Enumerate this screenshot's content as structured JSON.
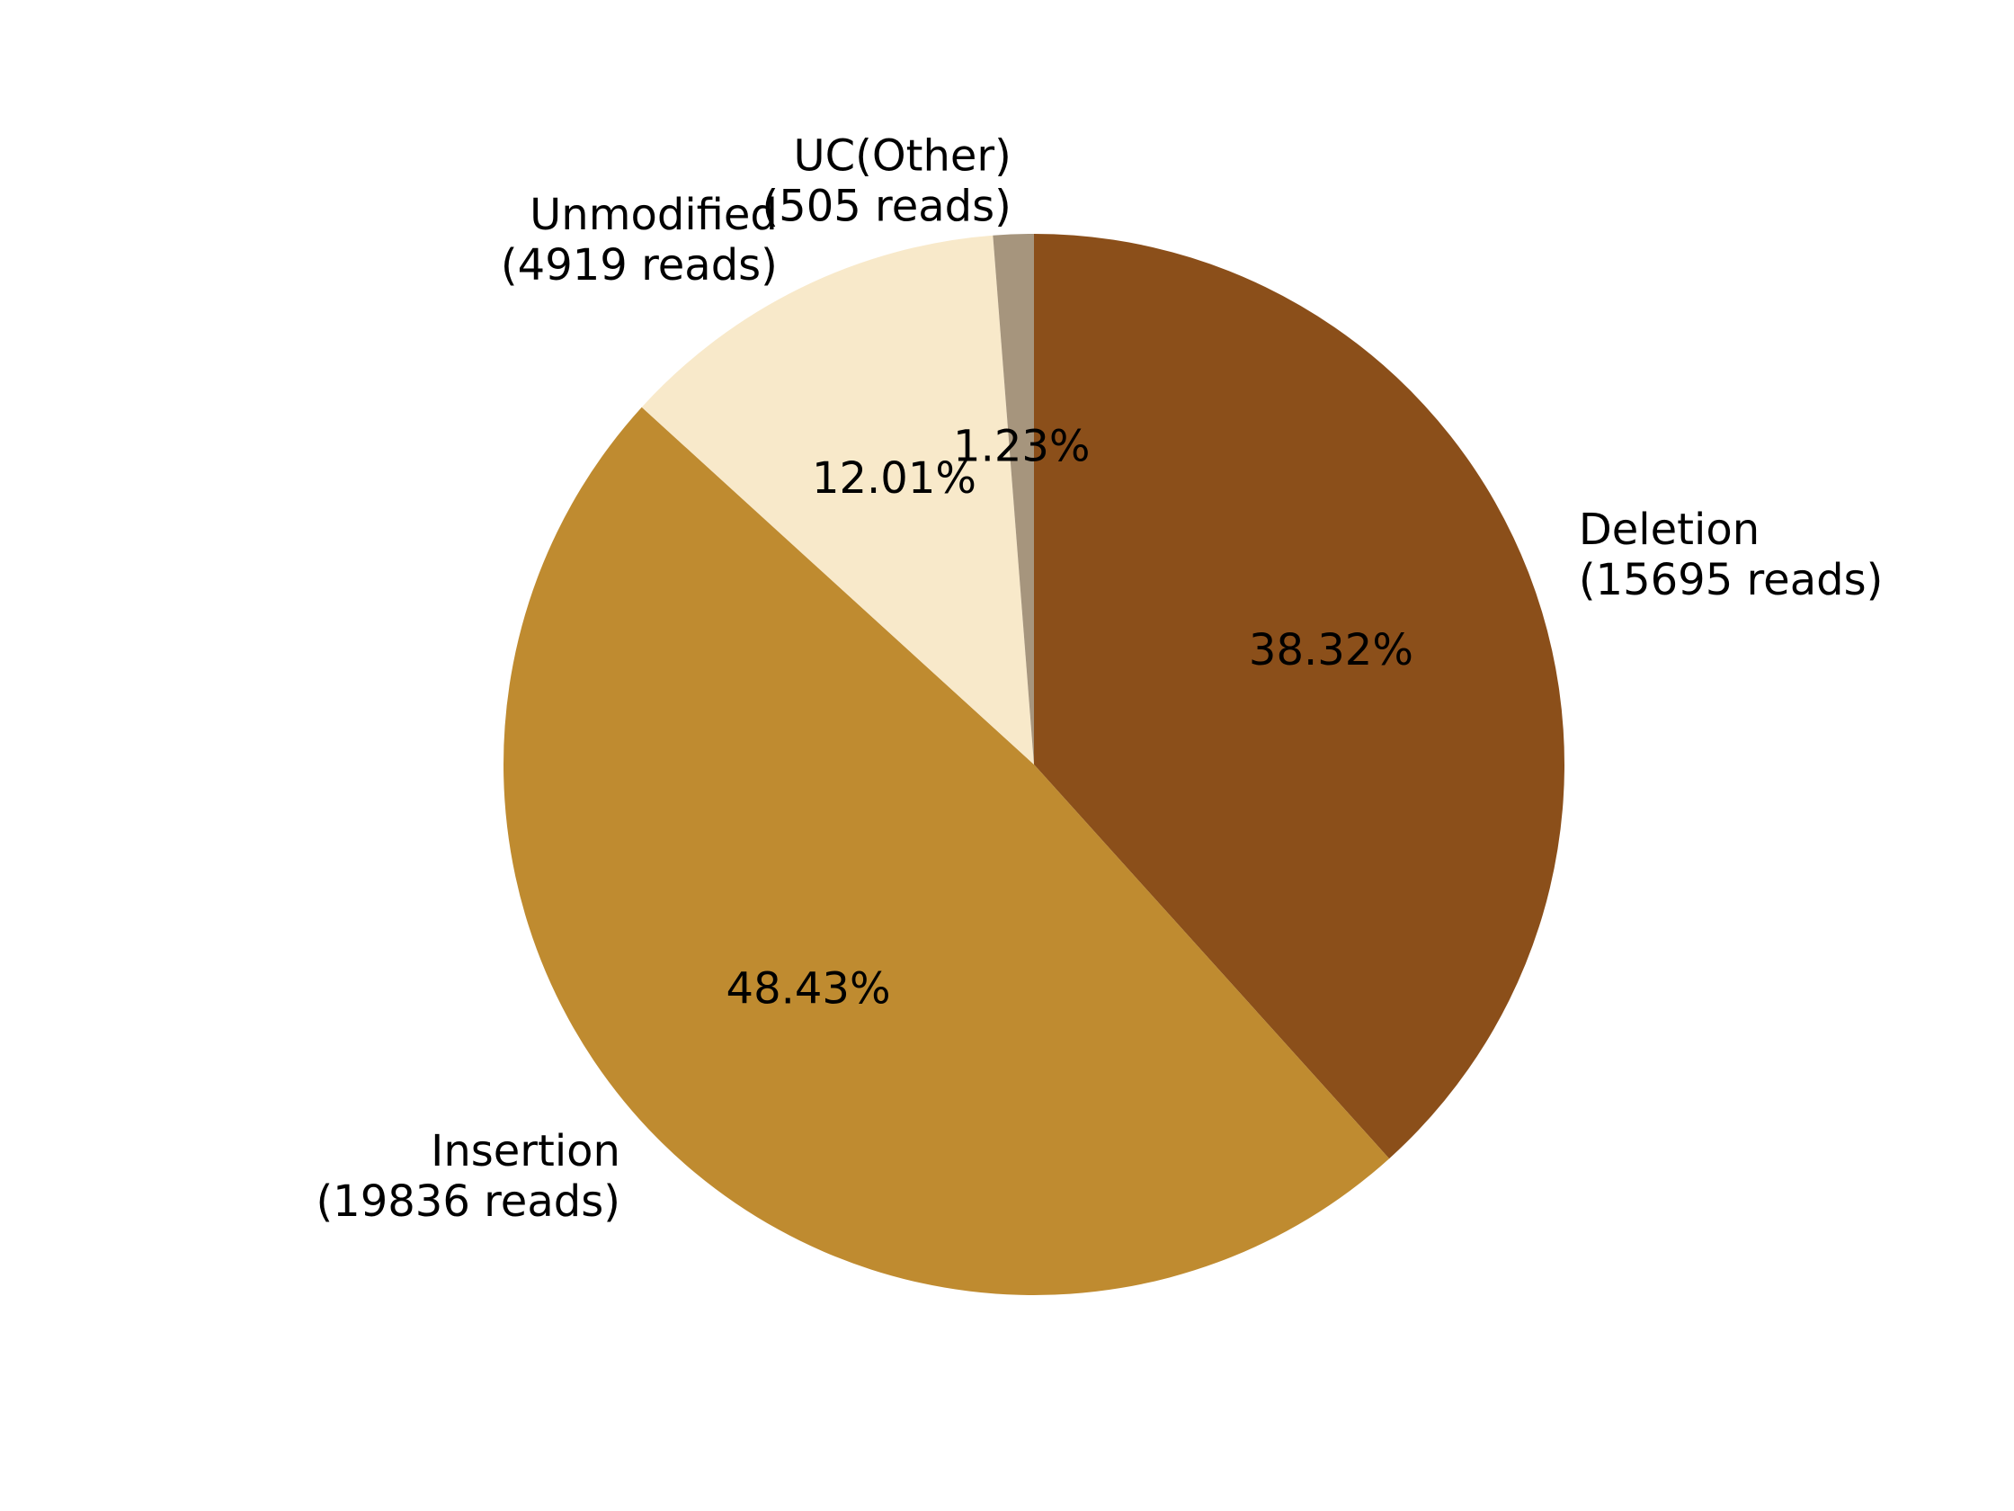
{
  "chart_data": {
    "type": "pie",
    "title": "",
    "start_angle_deg": 90,
    "direction": "clockwise",
    "slices": [
      {
        "name": "Deletion",
        "reads_label": "(15695 reads)",
        "value": 15695,
        "percent_label": "38.32%",
        "color": "#8B4F1A"
      },
      {
        "name": "Insertion",
        "reads_label": "(19836 reads)",
        "value": 19836,
        "percent_label": "48.43%",
        "color": "#BF8B30"
      },
      {
        "name": "Unmodified",
        "reads_label": "(4919 reads)",
        "value": 4919,
        "percent_label": "12.01%",
        "color": "#F8E9CA"
      },
      {
        "name": "UC(Other)",
        "reads_label": "(505 reads)",
        "value": 505,
        "percent_label": "1.23%",
        "color": "#A6957D"
      }
    ]
  }
}
